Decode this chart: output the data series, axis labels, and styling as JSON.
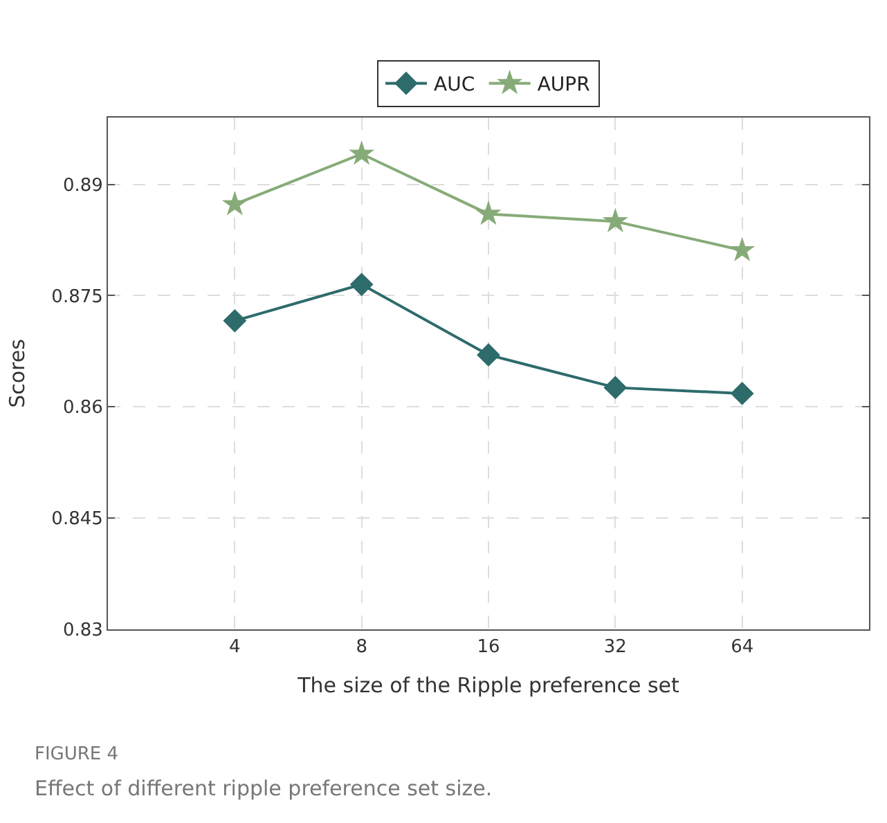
{
  "chart_data": {
    "type": "line",
    "xlabel": "The size of the Ripple preference set",
    "ylabel": "Scores",
    "categories": [
      "4",
      "8",
      "16",
      "32",
      "64"
    ],
    "series": [
      {
        "name": "AUC",
        "color": "#2e6b6b",
        "marker": "diamond",
        "values": [
          0.8716,
          0.8765,
          0.867,
          0.8626,
          0.8618
        ]
      },
      {
        "name": "AUPR",
        "color": "#86ab78",
        "marker": "star",
        "values": [
          0.8873,
          0.8941,
          0.886,
          0.885,
          0.8811
        ]
      }
    ],
    "ylim": [
      0.83,
      0.899
    ],
    "yticks": [
      0.83,
      0.845,
      0.86,
      0.875,
      0.89
    ],
    "grid": true,
    "legend": "top",
    "line_style": "solid",
    "annotations": [
      "FIGURE 4",
      "Effect of different ripple preference set size."
    ]
  }
}
